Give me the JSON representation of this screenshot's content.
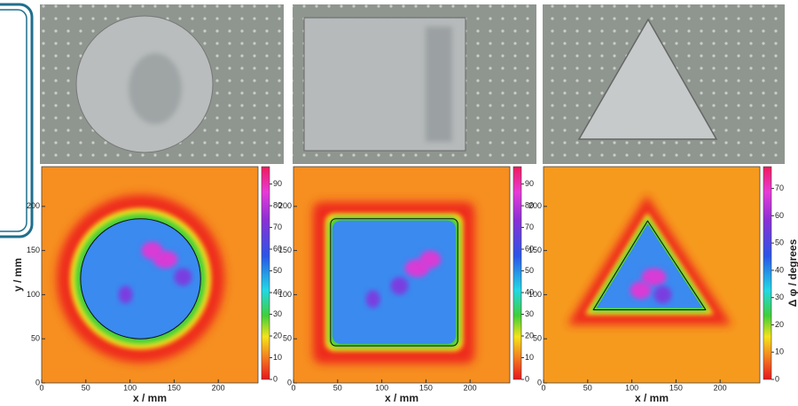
{
  "chart_data": [
    {
      "type": "contour",
      "xlabel": "x / mm",
      "ylabel": "y / mm",
      "xlim": [
        0,
        245
      ],
      "ylim": [
        0,
        245
      ],
      "xticks": [
        0,
        50,
        100,
        150,
        200
      ],
      "yticks": [
        0,
        50,
        100,
        150,
        200
      ],
      "colorbar": {
        "lim": [
          0,
          98
        ],
        "ticks": [
          0,
          10,
          20,
          30,
          40,
          50,
          60,
          70,
          80,
          90
        ]
      }
    },
    {
      "type": "contour",
      "xlabel": "x / mm",
      "xlim": [
        0,
        245
      ],
      "ylim": [
        0,
        245
      ],
      "xticks": [
        0,
        50,
        100,
        150,
        200
      ],
      "yticks": [
        0,
        50,
        100,
        150,
        200
      ],
      "colorbar": {
        "lim": [
          0,
          98
        ],
        "ticks": [
          0,
          10,
          20,
          30,
          40,
          50,
          60,
          70,
          80,
          90
        ]
      }
    },
    {
      "type": "contour",
      "xlabel": "x / mm",
      "xlim": [
        0,
        245
      ],
      "ylim": [
        0,
        245
      ],
      "xticks": [
        0,
        50,
        100,
        150,
        200
      ],
      "yticks": [
        0,
        50,
        100,
        150,
        200
      ],
      "colorbar": {
        "lim": [
          0,
          78
        ],
        "ticks": [
          0,
          10,
          20,
          30,
          40,
          50,
          60,
          70
        ],
        "label": "Δ φ / degrees"
      }
    }
  ]
}
